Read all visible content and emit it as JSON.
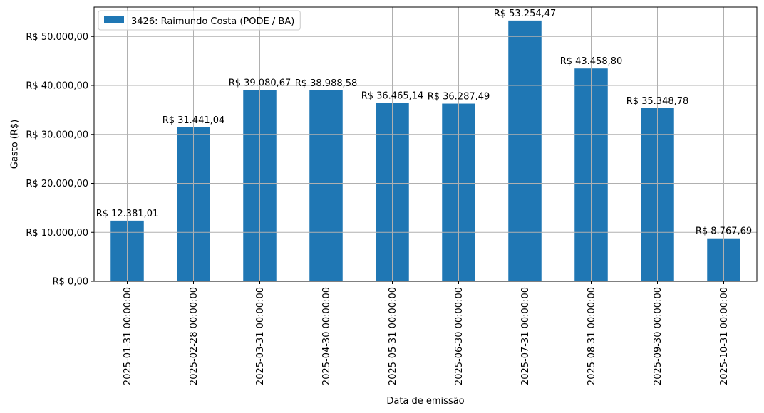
{
  "colors": {
    "bar": "#1f77b4",
    "grid": "#b0b0b0",
    "axis": "#000000"
  },
  "chart_data": {
    "type": "bar",
    "xlabel": "Data de emissão",
    "ylabel": "Gasto (R$)",
    "ylim": [
      0,
      56000
    ],
    "yticks": [
      0,
      10000,
      20000,
      30000,
      40000,
      50000
    ],
    "ytick_labels": [
      "R$ 0,00",
      "R$ 10.000,00",
      "R$ 20.000,00",
      "R$ 30.000,00",
      "R$ 40.000,00",
      "R$ 50.000,00"
    ],
    "grid": true,
    "legend": {
      "placement": "top-left",
      "entries": [
        "3426: Raimundo Costa (PODE / BA)"
      ]
    },
    "categories": [
      "2025-01-31 00:00:00",
      "2025-02-28 00:00:00",
      "2025-03-31 00:00:00",
      "2025-04-30 00:00:00",
      "2025-05-31 00:00:00",
      "2025-06-30 00:00:00",
      "2025-07-31 00:00:00",
      "2025-08-31 00:00:00",
      "2025-09-30 00:00:00",
      "2025-10-31 00:00:00"
    ],
    "series": [
      {
        "name": "3426: Raimundo Costa (PODE / BA)",
        "values": [
          12381.01,
          31441.04,
          39080.67,
          38988.58,
          36465.14,
          36287.49,
          53254.47,
          43458.8,
          35348.78,
          8767.69
        ],
        "labels": [
          "R$ 12.381,01",
          "R$ 31.441,04",
          "R$ 39.080,67",
          "R$ 38.988,58",
          "R$ 36.465,14",
          "R$ 36.287,49",
          "R$ 53.254,47",
          "R$ 43.458,80",
          "R$ 35.348,78",
          "R$ 8.767,69"
        ]
      }
    ]
  }
}
